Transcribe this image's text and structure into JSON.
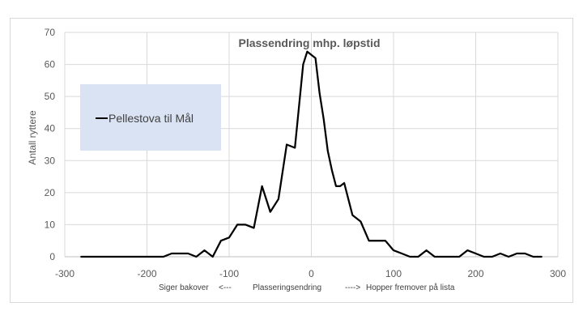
{
  "chart_data": {
    "type": "line",
    "title": "Plassendring mhp. løpstid",
    "ylabel": "Antall ryttere",
    "xlabel_parts": {
      "left": "Siger bakover",
      "left_arrow": "<---",
      "center": "Plasseringsendring",
      "right_arrow": "---->",
      "right": "Hopper fremover på lista"
    },
    "xlim": [
      -300,
      300
    ],
    "ylim": [
      0,
      70
    ],
    "xticks": [
      -300,
      -200,
      -100,
      0,
      100,
      200,
      300
    ],
    "yticks": [
      0,
      10,
      20,
      30,
      40,
      50,
      60,
      70
    ],
    "grid": "vertical and horizontal",
    "legend_position": "left, inside plot",
    "series": [
      {
        "name": "Pellestova til Mål",
        "color": "#000000",
        "x": [
          -280,
          -270,
          -260,
          -250,
          -240,
          -230,
          -220,
          -210,
          -200,
          -190,
          -180,
          -170,
          -160,
          -150,
          -140,
          -130,
          -120,
          -110,
          -100,
          -90,
          -80,
          -70,
          -60,
          -50,
          -40,
          -30,
          -20,
          -10,
          -5,
          0,
          5,
          10,
          15,
          20,
          25,
          30,
          35,
          40,
          45,
          50,
          60,
          70,
          80,
          90,
          100,
          110,
          120,
          130,
          140,
          150,
          160,
          170,
          180,
          190,
          200,
          210,
          220,
          230,
          240,
          250,
          260,
          270,
          280
        ],
        "y": [
          0,
          0,
          0,
          0,
          0,
          0,
          0,
          0,
          0,
          0,
          0,
          1,
          1,
          1,
          0,
          2,
          0,
          5,
          6,
          10,
          10,
          9,
          22,
          14,
          18,
          35,
          34,
          60,
          64,
          63,
          62,
          51,
          43,
          33,
          27,
          22,
          22,
          23,
          18,
          13,
          11,
          5,
          5,
          5,
          2,
          1,
          0,
          0,
          2,
          0,
          0,
          0,
          0,
          2,
          1,
          0,
          0,
          1,
          0,
          1,
          1,
          0,
          0
        ]
      }
    ]
  }
}
